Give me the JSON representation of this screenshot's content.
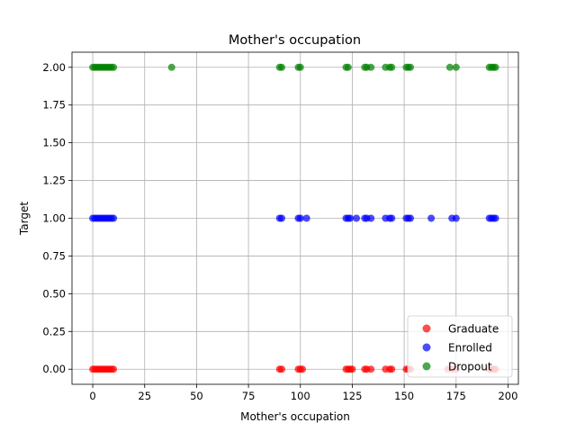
{
  "chart_data": {
    "type": "scatter",
    "title": "Mother's occupation",
    "xlabel": "Mother's occupation",
    "ylabel": "Target",
    "xlim": [
      -10,
      205
    ],
    "ylim": [
      -0.1,
      2.1
    ],
    "xticks": [
      0,
      25,
      50,
      75,
      100,
      125,
      150,
      175,
      200
    ],
    "yticks": [
      0.0,
      0.25,
      0.5,
      0.75,
      1.0,
      1.25,
      1.5,
      1.75,
      2.0
    ],
    "xtick_labels": [
      "0",
      "25",
      "50",
      "75",
      "100",
      "125",
      "150",
      "175",
      "200"
    ],
    "ytick_labels": [
      "0.00",
      "0.25",
      "0.50",
      "0.75",
      "1.00",
      "1.25",
      "1.50",
      "1.75",
      "2.00"
    ],
    "grid": true,
    "legend_position": "lower-right",
    "series": [
      {
        "name": "Graduate",
        "color": "#ff0000",
        "y": 0,
        "x": [
          0,
          1,
          2,
          3,
          4,
          5,
          6,
          7,
          8,
          9,
          10,
          90,
          91,
          99,
          100,
          101,
          122,
          123,
          124,
          125,
          131,
          132,
          134,
          141,
          143,
          144,
          151,
          152,
          153,
          171,
          173,
          175,
          191,
          192,
          193,
          194
        ]
      },
      {
        "name": "Enrolled",
        "color": "#0000ff",
        "y": 1,
        "x": [
          0,
          1,
          2,
          3,
          4,
          5,
          6,
          7,
          8,
          9,
          10,
          90,
          91,
          99,
          100,
          103,
          122,
          123,
          124,
          127,
          131,
          132,
          134,
          141,
          143,
          144,
          151,
          152,
          153,
          163,
          173,
          175,
          191,
          192,
          193,
          194
        ]
      },
      {
        "name": "Dropout",
        "color": "#008000",
        "y": 2,
        "x": [
          0,
          1,
          2,
          3,
          4,
          5,
          6,
          7,
          8,
          9,
          10,
          38,
          90,
          91,
          99,
          100,
          122,
          123,
          131,
          132,
          134,
          141,
          143,
          144,
          151,
          152,
          153,
          172,
          175,
          191,
          192,
          193,
          194
        ]
      }
    ]
  }
}
